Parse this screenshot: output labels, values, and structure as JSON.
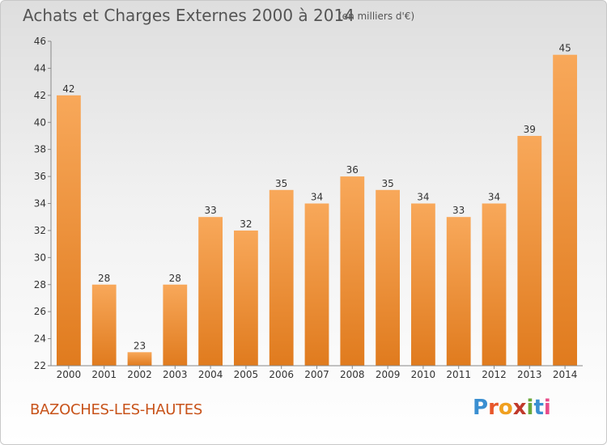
{
  "header": {
    "title": "Achats et Charges Externes 2000 à 2014",
    "subtitle": "(en milliers d'€)"
  },
  "footer": {
    "commune": "BAZOCHES-LES-HAUTES",
    "brand": "Proxiti",
    "brand_colors": [
      "#3a8fd1",
      "#e8572a",
      "#f0a020",
      "#c0392b",
      "#6aa83a",
      "#3a8fd1",
      "#e84b8a"
    ]
  },
  "chart_data": {
    "type": "bar",
    "categories": [
      "2000",
      "2001",
      "2002",
      "2003",
      "2004",
      "2005",
      "2006",
      "2007",
      "2008",
      "2009",
      "2010",
      "2011",
      "2012",
      "2013",
      "2014"
    ],
    "values": [
      42,
      28,
      23,
      28,
      33,
      32,
      35,
      34,
      36,
      35,
      34,
      33,
      34,
      39,
      45
    ],
    "ylim": [
      22,
      46
    ],
    "yticks": [
      22,
      24,
      26,
      28,
      30,
      32,
      34,
      36,
      38,
      40,
      42,
      44,
      46
    ],
    "grid": false,
    "bar_color_top": "#f8a85a",
    "bar_color_bottom": "#e07b1e",
    "axis_color": "#888888"
  }
}
